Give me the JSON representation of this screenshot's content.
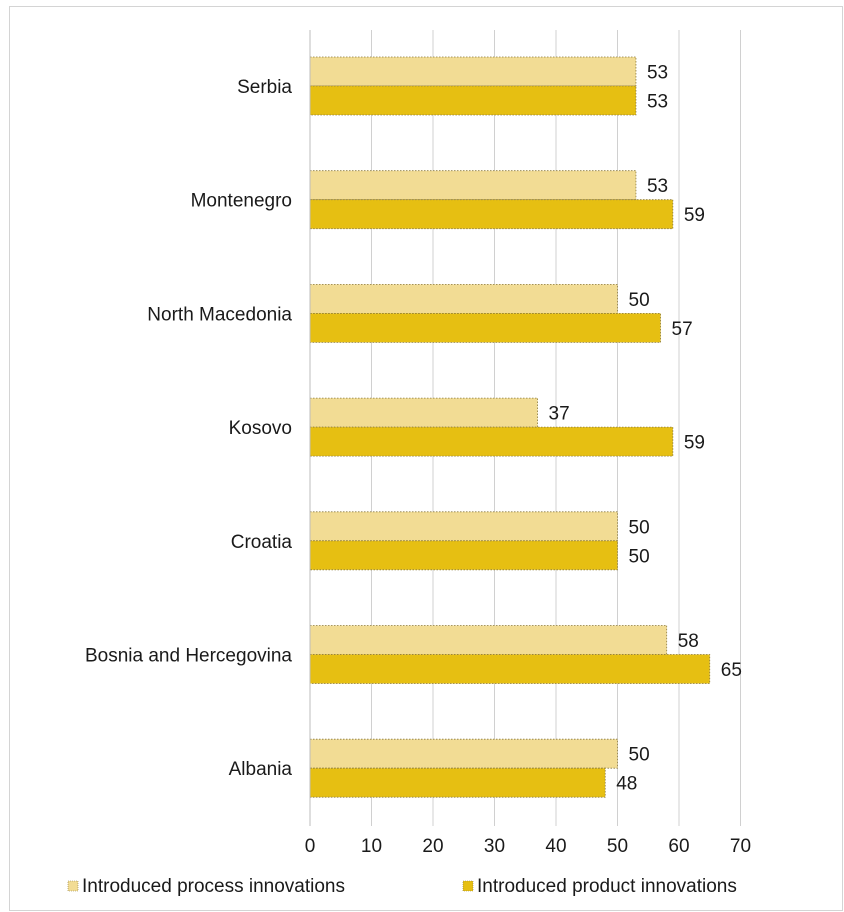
{
  "chart_data": {
    "type": "bar",
    "orientation": "horizontal",
    "categories": [
      "Serbia",
      "Montenegro",
      "North Macedonia",
      "Kosovo",
      "Croatia",
      "Bosnia and Hercegovina",
      "Albania"
    ],
    "series": [
      {
        "name": "Introduced process innovations",
        "values": [
          53,
          53,
          50,
          37,
          50,
          58,
          50
        ],
        "color": "#f2dc94"
      },
      {
        "name": "Introduced product innovations",
        "values": [
          53,
          59,
          57,
          59,
          50,
          65,
          48
        ],
        "color": "#e6bf12"
      }
    ],
    "xlim": [
      0,
      70
    ],
    "xticks": [
      0,
      10,
      20,
      30,
      40,
      50,
      60,
      70
    ],
    "grid": "vertical",
    "legend_position": "bottom",
    "data_labels": true
  }
}
